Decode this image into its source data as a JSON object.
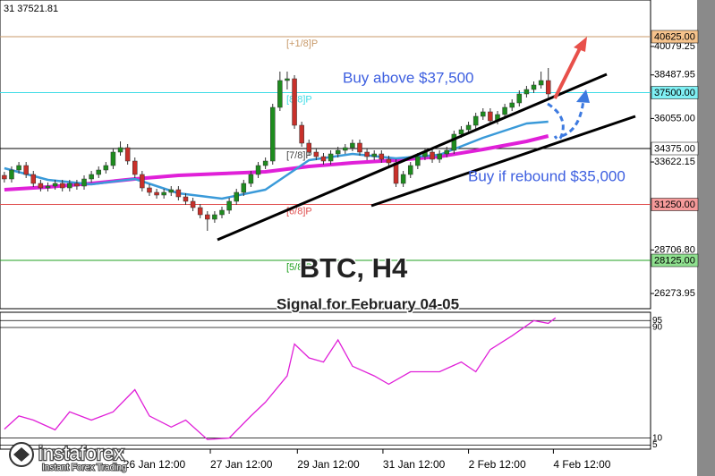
{
  "chart_data": {
    "type": "candlestick",
    "header": "31 37521.81",
    "title": "BTC, H4",
    "subtitle": "Signal for February 04-05",
    "annotations": [
      {
        "text": "Buy above $37,500",
        "color": "#3d5fe0"
      },
      {
        "text": "Buy if rebound $35,000",
        "color": "#3d5fe0"
      }
    ],
    "up_color": "#1e8c1e",
    "down_color": "#c8302a",
    "open": [
      32875,
      32675,
      33175,
      33425,
      32925,
      32425,
      32175,
      32275,
      32425,
      32175,
      32425,
      32275,
      32675,
      32925,
      33175,
      33425,
      34175,
      34425,
      33675,
      32925,
      32175,
      31925,
      31775,
      31925,
      32075,
      31675,
      31425,
      31075,
      30675,
      30425,
      30675,
      30925,
      31425,
      31925,
      32425,
      32925,
      33425,
      33675,
      36675,
      38175,
      38275,
      35675,
      34675,
      34175,
      33925,
      33675,
      34075,
      34275,
      34425,
      34675,
      34175,
      33925,
      34075,
      33775,
      33575,
      32425,
      32925,
      33425,
      33925,
      34175,
      33775,
      34075,
      34275,
      35175,
      35425,
      35675,
      36175,
      36425,
      35925,
      36275,
      36675,
      36925,
      37425,
      37675,
      37925,
      38175
    ],
    "high": [
      33075,
      33375,
      33625,
      33625,
      33125,
      32625,
      32475,
      32625,
      32625,
      32625,
      32625,
      32875,
      33125,
      33375,
      33625,
      34375,
      34775,
      34625,
      33875,
      33125,
      32375,
      32125,
      32125,
      32275,
      32275,
      31875,
      31625,
      31275,
      30875,
      30875,
      31125,
      31625,
      32125,
      32625,
      33125,
      33625,
      33875,
      36875,
      38675,
      38675,
      38475,
      35875,
      34875,
      34375,
      34125,
      34275,
      34475,
      34625,
      34875,
      34875,
      34375,
      34275,
      34275,
      33975,
      33775,
      33125,
      33625,
      34125,
      34375,
      34375,
      34275,
      34475,
      35375,
      35625,
      35875,
      36375,
      36625,
      36625,
      36475,
      36875,
      37125,
      37625,
      37875,
      38125,
      38675,
      38875
    ],
    "low": [
      32475,
      32475,
      32975,
      32725,
      32225,
      31975,
      31975,
      32075,
      31975,
      31975,
      32075,
      32075,
      32475,
      32725,
      32975,
      33225,
      33975,
      33475,
      32725,
      31975,
      31725,
      31575,
      31575,
      31725,
      31475,
      31225,
      30875,
      30475,
      29775,
      30225,
      30475,
      30725,
      31225,
      31725,
      32225,
      32725,
      33225,
      33475,
      36475,
      37675,
      35475,
      34475,
      33975,
      33725,
      33475,
      33475,
      33875,
      34075,
      34225,
      33975,
      33725,
      33725,
      33575,
      33375,
      32225,
      32225,
      32725,
      33225,
      33725,
      33575,
      33575,
      33875,
      34075,
      34975,
      35225,
      35475,
      35975,
      35725,
      35725,
      36075,
      36475,
      36725,
      37225,
      37475,
      37725,
      37225
    ],
    "close": [
      32675,
      33175,
      33425,
      32925,
      32425,
      32175,
      32275,
      32425,
      32175,
      32425,
      32275,
      32675,
      32925,
      33175,
      33425,
      34175,
      34425,
      33675,
      32925,
      32175,
      31925,
      31775,
      31925,
      32075,
      31675,
      31425,
      31075,
      30675,
      30425,
      30675,
      30925,
      31425,
      31925,
      32425,
      32925,
      33425,
      33675,
      36675,
      38175,
      38275,
      35675,
      34675,
      34175,
      33925,
      33675,
      34075,
      34275,
      34425,
      34675,
      34175,
      33925,
      34075,
      33775,
      33575,
      32425,
      32925,
      33425,
      33925,
      34175,
      33775,
      34075,
      34275,
      35175,
      35425,
      35675,
      36175,
      36425,
      35925,
      36275,
      36675,
      36925,
      37425,
      37675,
      37925,
      38175,
      37425
    ],
    "moving_averages": [
      {
        "color": "#e020d8",
        "x": [
          0,
          6,
          12,
          18,
          24,
          30,
          36,
          42,
          48,
          54,
          60,
          66,
          72,
          75
        ],
        "values": [
          32075,
          32225,
          32425,
          32675,
          32875,
          32975,
          33075,
          33375,
          33575,
          33725,
          33925,
          34325,
          34775,
          35075
        ]
      },
      {
        "color": "#3a9ad9",
        "x": [
          0,
          6,
          12,
          18,
          24,
          30,
          36,
          42,
          48,
          54,
          60,
          66,
          72,
          75
        ],
        "values": [
          33275,
          32625,
          32375,
          32675,
          31875,
          31575,
          32075,
          33725,
          34075,
          33825,
          34025,
          34975,
          35775,
          35875
        ]
      }
    ],
    "levels": [
      {
        "value": 40625,
        "label": "40625.00",
        "murray": "[+1/8]P",
        "color": "#c89a6a",
        "fill": "#f6c38c"
      },
      {
        "value": 37500,
        "label": "37500.00",
        "murray": "[8/8]P",
        "color": "#40dce6",
        "fill": "#7ff0f4"
      },
      {
        "value": 34375,
        "label": "34375.00",
        "murray": "[7/8]P",
        "color": "#000000",
        "fill": "#ffffff"
      },
      {
        "value": 31250,
        "label": "31250.00",
        "murray": "[6/8]P",
        "color": "#e05050",
        "fill": "#f59a9a"
      },
      {
        "value": 28125,
        "label": "28125.00",
        "murray": "[5/8]P",
        "color": "#20a020",
        "fill": "#8fe08f"
      }
    ],
    "xlim": [
      -0.6,
      89.1
    ],
    "ylim": [
      25425,
      42675
    ],
    "yticks": [
      {
        "value": 40079.25,
        "label": "40079.25"
      },
      {
        "value": 38487.95,
        "label": "38487.95"
      },
      {
        "value": 36055,
        "label": "36055.00"
      },
      {
        "value": 33622.15,
        "label": "33622.15"
      },
      {
        "value": 28706.8,
        "label": "28706.80"
      },
      {
        "value": 26273.95,
        "label": "26273.95"
      }
    ],
    "xticks": [
      {
        "value": 16.4,
        "label": "26 Jan 12:00"
      },
      {
        "value": 28.4,
        "label": "27 Jan 12:00"
      },
      {
        "value": 40.4,
        "label": "29 Jan 12:00"
      },
      {
        "value": 52.2,
        "label": "31 Jan 12:00"
      },
      {
        "value": 64,
        "label": "2 Feb 12:00"
      },
      {
        "value": 75.7,
        "label": "4 Feb 12:00"
      }
    ],
    "indicator": {
      "color": "#e020d8",
      "x": [
        0,
        2,
        4,
        7,
        9,
        12,
        15,
        18,
        20,
        23,
        25,
        28,
        31,
        34,
        36,
        39,
        40,
        42,
        44,
        46,
        48,
        51,
        53,
        56,
        60,
        63,
        65,
        67,
        70,
        73,
        75,
        76
      ],
      "values": [
        16.5,
        26,
        23,
        16,
        29,
        23,
        29,
        45,
        26,
        18,
        23,
        9,
        10,
        26,
        36,
        55,
        78,
        68,
        65,
        81,
        62,
        55,
        49,
        58,
        58,
        65,
        58,
        74,
        84,
        95,
        93,
        97
      ],
      "ylim": [
        2,
        101
      ],
      "yticks": [
        95,
        90,
        10,
        5
      ]
    }
  },
  "logo": {
    "name": "instaforex",
    "tagline": "Instant Forex Trading"
  }
}
